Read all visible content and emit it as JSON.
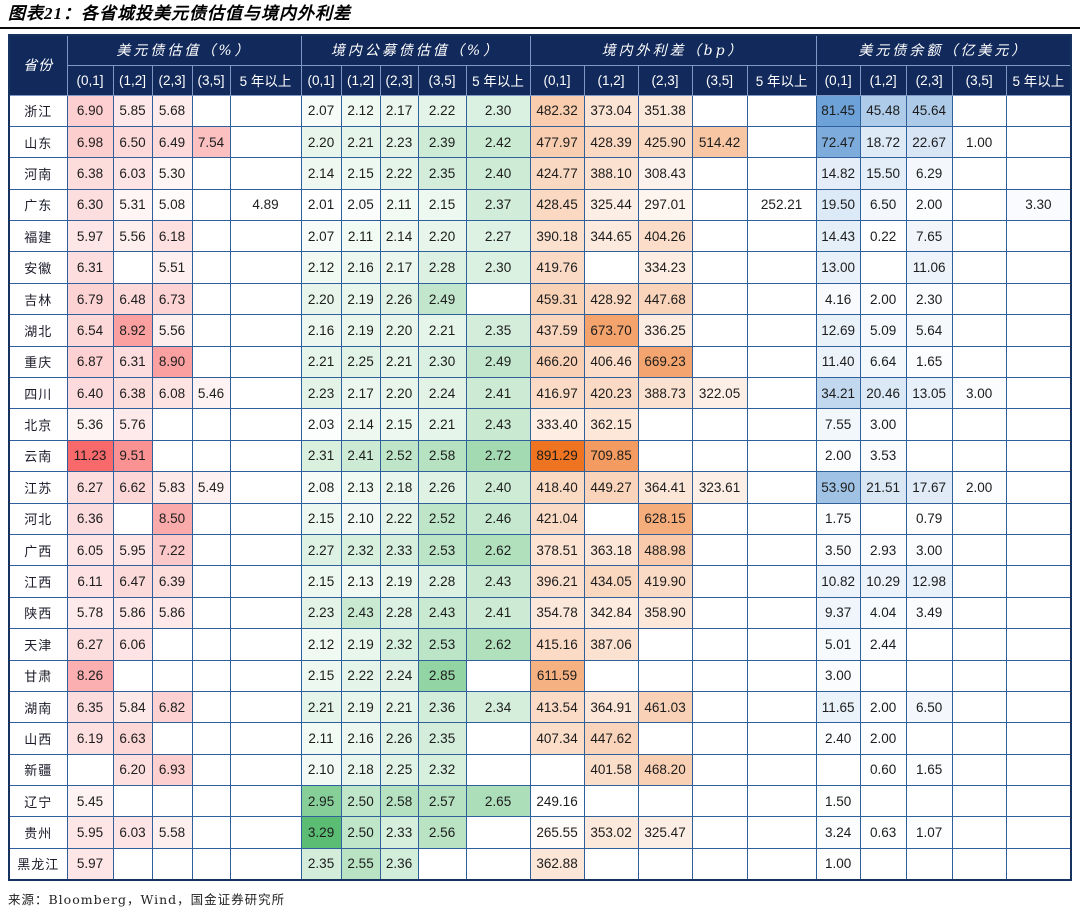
{
  "colors": {
    "header_bg": "#12295b",
    "grid_border": "#30609b",
    "outer_border": "#16335f",
    "header_border": "#7e97c3",
    "heat_usd_val": "#f8696b",
    "heat_dom_val": "#5bbd74",
    "heat_spread": "#ee7421",
    "heat_balance": "#6da2d8"
  },
  "chart_data": {
    "type": "table",
    "title": "图表21：各省城投美元债估值与境内外利差",
    "source": "来源：Bloomberg，Wind，国金证券研究所",
    "province_header": "省份",
    "maturities": [
      "(0,1]",
      "(1,2]",
      "(2,3]",
      "(3,5]",
      "5 年以上"
    ],
    "column_groups": [
      {
        "key": "usd_val",
        "label": "美元债估值（%）"
      },
      {
        "key": "dom_val",
        "label": "境内公募债估值（%）"
      },
      {
        "key": "spread",
        "label": "境内外利差（bp）"
      },
      {
        "key": "balance",
        "label": "美元债余额（亿美元）"
      }
    ],
    "rows": [
      {
        "province": "浙江",
        "usd_val": [
          6.9,
          5.85,
          5.68,
          null,
          null
        ],
        "dom_val": [
          2.07,
          2.12,
          2.17,
          2.22,
          2.3
        ],
        "spread": [
          482.32,
          373.04,
          351.38,
          null,
          null
        ],
        "balance": [
          81.45,
          45.48,
          45.64,
          null,
          null
        ]
      },
      {
        "province": "山东",
        "usd_val": [
          6.98,
          6.5,
          6.49,
          7.54,
          null
        ],
        "dom_val": [
          2.2,
          2.21,
          2.23,
          2.39,
          2.42
        ],
        "spread": [
          477.97,
          428.39,
          425.9,
          514.42,
          null
        ],
        "balance": [
          72.47,
          18.72,
          22.67,
          1.0,
          null
        ]
      },
      {
        "province": "河南",
        "usd_val": [
          6.38,
          6.03,
          5.3,
          null,
          null
        ],
        "dom_val": [
          2.14,
          2.15,
          2.22,
          2.35,
          2.4
        ],
        "spread": [
          424.77,
          388.1,
          308.43,
          null,
          null
        ],
        "balance": [
          14.82,
          15.5,
          6.29,
          null,
          null
        ]
      },
      {
        "province": "广东",
        "usd_val": [
          6.3,
          5.31,
          5.08,
          null,
          4.89
        ],
        "dom_val": [
          2.01,
          2.05,
          2.11,
          2.15,
          2.37
        ],
        "spread": [
          428.45,
          325.44,
          297.01,
          null,
          252.21
        ],
        "balance": [
          19.5,
          6.5,
          2.0,
          null,
          3.3
        ]
      },
      {
        "province": "福建",
        "usd_val": [
          5.97,
          5.56,
          6.18,
          null,
          null
        ],
        "dom_val": [
          2.07,
          2.11,
          2.14,
          2.2,
          2.27
        ],
        "spread": [
          390.18,
          344.65,
          404.26,
          null,
          null
        ],
        "balance": [
          14.43,
          0.22,
          7.65,
          null,
          null
        ]
      },
      {
        "province": "安徽",
        "usd_val": [
          6.31,
          null,
          5.51,
          null,
          null
        ],
        "dom_val": [
          2.12,
          2.16,
          2.17,
          2.28,
          2.3
        ],
        "spread": [
          419.76,
          null,
          334.23,
          null,
          null
        ],
        "balance": [
          13.0,
          null,
          11.06,
          null,
          null
        ]
      },
      {
        "province": "吉林",
        "usd_val": [
          6.79,
          6.48,
          6.73,
          null,
          null
        ],
        "dom_val": [
          2.2,
          2.19,
          2.26,
          2.49,
          null
        ],
        "spread": [
          459.31,
          428.92,
          447.68,
          null,
          null
        ],
        "balance": [
          4.16,
          2.0,
          2.3,
          null,
          null
        ]
      },
      {
        "province": "湖北",
        "usd_val": [
          6.54,
          8.92,
          5.56,
          null,
          null
        ],
        "dom_val": [
          2.16,
          2.19,
          2.2,
          2.21,
          2.35
        ],
        "spread": [
          437.59,
          673.7,
          336.25,
          null,
          null
        ],
        "balance": [
          12.69,
          5.09,
          5.64,
          null,
          null
        ]
      },
      {
        "province": "重庆",
        "usd_val": [
          6.87,
          6.31,
          8.9,
          null,
          null
        ],
        "dom_val": [
          2.21,
          2.25,
          2.21,
          2.3,
          2.49
        ],
        "spread": [
          466.2,
          406.46,
          669.23,
          null,
          null
        ],
        "balance": [
          11.4,
          6.64,
          1.65,
          null,
          null
        ]
      },
      {
        "province": "四川",
        "usd_val": [
          6.4,
          6.38,
          6.08,
          5.46,
          null
        ],
        "dom_val": [
          2.23,
          2.17,
          2.2,
          2.24,
          2.41
        ],
        "spread": [
          416.97,
          420.23,
          388.73,
          322.05,
          null
        ],
        "balance": [
          34.21,
          20.46,
          13.05,
          3.0,
          null
        ]
      },
      {
        "province": "北京",
        "usd_val": [
          5.36,
          5.76,
          null,
          null,
          null
        ],
        "dom_val": [
          2.03,
          2.14,
          2.15,
          2.21,
          2.43
        ],
        "spread": [
          333.4,
          362.15,
          null,
          null,
          null
        ],
        "balance": [
          7.55,
          3.0,
          null,
          null,
          null
        ]
      },
      {
        "province": "云南",
        "usd_val": [
          11.23,
          9.51,
          null,
          null,
          null
        ],
        "dom_val": [
          2.31,
          2.41,
          2.52,
          2.58,
          2.72
        ],
        "spread": [
          891.29,
          709.85,
          null,
          null,
          null
        ],
        "balance": [
          2.0,
          3.53,
          null,
          null,
          null
        ]
      },
      {
        "province": "江苏",
        "usd_val": [
          6.27,
          6.62,
          5.83,
          5.49,
          null
        ],
        "dom_val": [
          2.08,
          2.13,
          2.18,
          2.26,
          2.4
        ],
        "spread": [
          418.4,
          449.27,
          364.41,
          323.61,
          null
        ],
        "balance": [
          53.9,
          21.51,
          17.67,
          2.0,
          null
        ]
      },
      {
        "province": "河北",
        "usd_val": [
          6.36,
          null,
          8.5,
          null,
          null
        ],
        "dom_val": [
          2.15,
          2.1,
          2.22,
          2.52,
          2.46
        ],
        "spread": [
          421.04,
          null,
          628.15,
          null,
          null
        ],
        "balance": [
          1.75,
          null,
          0.79,
          null,
          null
        ]
      },
      {
        "province": "广西",
        "usd_val": [
          6.05,
          5.95,
          7.22,
          null,
          null
        ],
        "dom_val": [
          2.27,
          2.32,
          2.33,
          2.53,
          2.62
        ],
        "spread": [
          378.51,
          363.18,
          488.98,
          null,
          null
        ],
        "balance": [
          3.5,
          2.93,
          3.0,
          null,
          null
        ]
      },
      {
        "province": "江西",
        "usd_val": [
          6.11,
          6.47,
          6.39,
          null,
          null
        ],
        "dom_val": [
          2.15,
          2.13,
          2.19,
          2.28,
          2.43
        ],
        "spread": [
          396.21,
          434.05,
          419.9,
          null,
          null
        ],
        "balance": [
          10.82,
          10.29,
          12.98,
          null,
          null
        ]
      },
      {
        "province": "陕西",
        "usd_val": [
          5.78,
          5.86,
          5.86,
          null,
          null
        ],
        "dom_val": [
          2.23,
          2.43,
          2.28,
          2.43,
          2.41
        ],
        "spread": [
          354.78,
          342.84,
          358.9,
          null,
          null
        ],
        "balance": [
          9.37,
          4.04,
          3.49,
          null,
          null
        ]
      },
      {
        "province": "天津",
        "usd_val": [
          6.27,
          6.06,
          null,
          null,
          null
        ],
        "dom_val": [
          2.12,
          2.19,
          2.32,
          2.53,
          2.62
        ],
        "spread": [
          415.16,
          387.06,
          null,
          null,
          null
        ],
        "balance": [
          5.01,
          2.44,
          null,
          null,
          null
        ]
      },
      {
        "province": "甘肃",
        "usd_val": [
          8.26,
          null,
          null,
          null,
          null
        ],
        "dom_val": [
          2.15,
          2.22,
          2.24,
          2.85,
          null
        ],
        "spread": [
          611.59,
          null,
          null,
          null,
          null
        ],
        "balance": [
          3.0,
          null,
          null,
          null,
          null
        ]
      },
      {
        "province": "湖南",
        "usd_val": [
          6.35,
          5.84,
          6.82,
          null,
          null
        ],
        "dom_val": [
          2.21,
          2.19,
          2.21,
          2.36,
          2.34
        ],
        "spread": [
          413.54,
          364.91,
          461.03,
          null,
          null
        ],
        "balance": [
          11.65,
          2.0,
          6.5,
          null,
          null
        ]
      },
      {
        "province": "山西",
        "usd_val": [
          6.19,
          6.63,
          null,
          null,
          null
        ],
        "dom_val": [
          2.11,
          2.16,
          2.26,
          2.35,
          null
        ],
        "spread": [
          407.34,
          447.62,
          null,
          null,
          null
        ],
        "balance": [
          2.4,
          2.0,
          null,
          null,
          null
        ]
      },
      {
        "province": "新疆",
        "usd_val": [
          null,
          6.2,
          6.93,
          null,
          null
        ],
        "dom_val": [
          2.1,
          2.18,
          2.25,
          2.32,
          null
        ],
        "spread": [
          null,
          401.58,
          468.2,
          null,
          null
        ],
        "balance": [
          null,
          0.6,
          1.65,
          null,
          null
        ]
      },
      {
        "province": "辽宁",
        "usd_val": [
          5.45,
          null,
          null,
          null,
          null
        ],
        "dom_val": [
          2.95,
          2.5,
          2.58,
          2.57,
          2.65
        ],
        "spread": [
          249.16,
          null,
          null,
          null,
          null
        ],
        "balance": [
          1.5,
          null,
          null,
          null,
          null
        ]
      },
      {
        "province": "贵州",
        "usd_val": [
          5.95,
          6.03,
          5.58,
          null,
          null
        ],
        "dom_val": [
          3.29,
          2.5,
          2.33,
          2.56,
          null
        ],
        "spread": [
          265.55,
          353.02,
          325.47,
          null,
          null
        ],
        "balance": [
          3.24,
          0.63,
          1.07,
          null,
          null
        ]
      },
      {
        "province": "黑龙江",
        "usd_val": [
          5.97,
          null,
          null,
          null,
          null
        ],
        "dom_val": [
          2.35,
          2.55,
          2.36,
          null,
          null
        ],
        "spread": [
          362.88,
          null,
          null,
          null,
          null
        ],
        "balance": [
          1.0,
          null,
          null,
          null,
          null
        ]
      }
    ]
  }
}
